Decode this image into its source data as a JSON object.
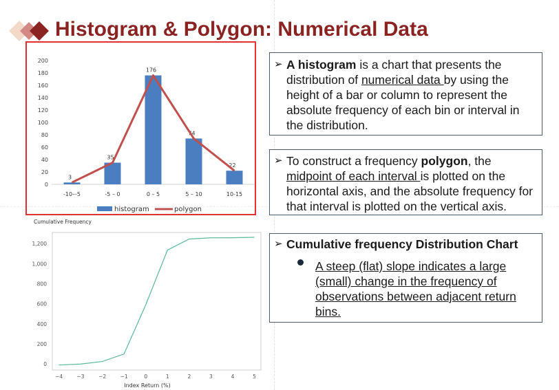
{
  "title": "Histogram & Polygon: Numerical Data",
  "colors": {
    "title": "#8b2323",
    "bar": "#4a7ec0",
    "polygon": "#c0504d",
    "cumulative_line": "#5ab89c",
    "frame": "#e03030"
  },
  "box1": {
    "bold": "A histogram",
    "t1": " is a chart that presents the distribution of ",
    "u1": "numerical data ",
    "t2": "by using the height of a bar or column to represent the absolute frequency of each bin or interval in the distribution."
  },
  "box2": {
    "t1": "To construct a frequency ",
    "bold": "polygon",
    "t2": ", the ",
    "u1": "midpoint of each interval ",
    "t3": "is plotted on the horizontal axis, and the absolute frequency for that interval is plotted on the vertical axis."
  },
  "box3": {
    "heading": "Cumulative frequency Distribution Chart",
    "bullet": "A steep (flat) slope indicates a large (small) change in the frequency of observations between adjacent return bins."
  },
  "chart_data": [
    {
      "type": "bar",
      "categories": [
        "-10–-5",
        "-5 – 0",
        "0 – 5",
        "5 – 10",
        "10-15"
      ],
      "series": [
        {
          "name": "histogram",
          "values": [
            3,
            35,
            176,
            74,
            22
          ]
        },
        {
          "name": "polygon",
          "values": [
            3,
            35,
            176,
            74,
            22
          ]
        }
      ],
      "data_labels": [
        "3",
        "35",
        "176",
        "74",
        "22"
      ],
      "yticks": [
        "0",
        "20",
        "40",
        "60",
        "80",
        "100",
        "120",
        "140",
        "160",
        "180",
        "200"
      ],
      "ylim": [
        0,
        200
      ],
      "legend": "bottom",
      "grid": false
    },
    {
      "type": "line",
      "ylabel": "Cumulative Frequency",
      "xlabel": "Index Return (%)",
      "x": [
        -4,
        -3,
        -2,
        -1,
        0,
        1,
        2,
        3,
        4,
        5
      ],
      "series": [
        {
          "values": [
            -10,
            0,
            25,
            100,
            590,
            1135,
            1245,
            1257,
            1258,
            1262
          ]
        }
      ],
      "xticks": [
        "−4",
        "−3",
        "−2",
        "−1",
        "0",
        "1",
        "2",
        "3",
        "4",
        "5"
      ],
      "yticks": [
        "0",
        "200",
        "400",
        "600",
        "800",
        "1,000",
        "1,200"
      ],
      "ylim": [
        -60,
        1310
      ],
      "xlim": [
        -4.3,
        5.3
      ],
      "grid": false
    }
  ]
}
